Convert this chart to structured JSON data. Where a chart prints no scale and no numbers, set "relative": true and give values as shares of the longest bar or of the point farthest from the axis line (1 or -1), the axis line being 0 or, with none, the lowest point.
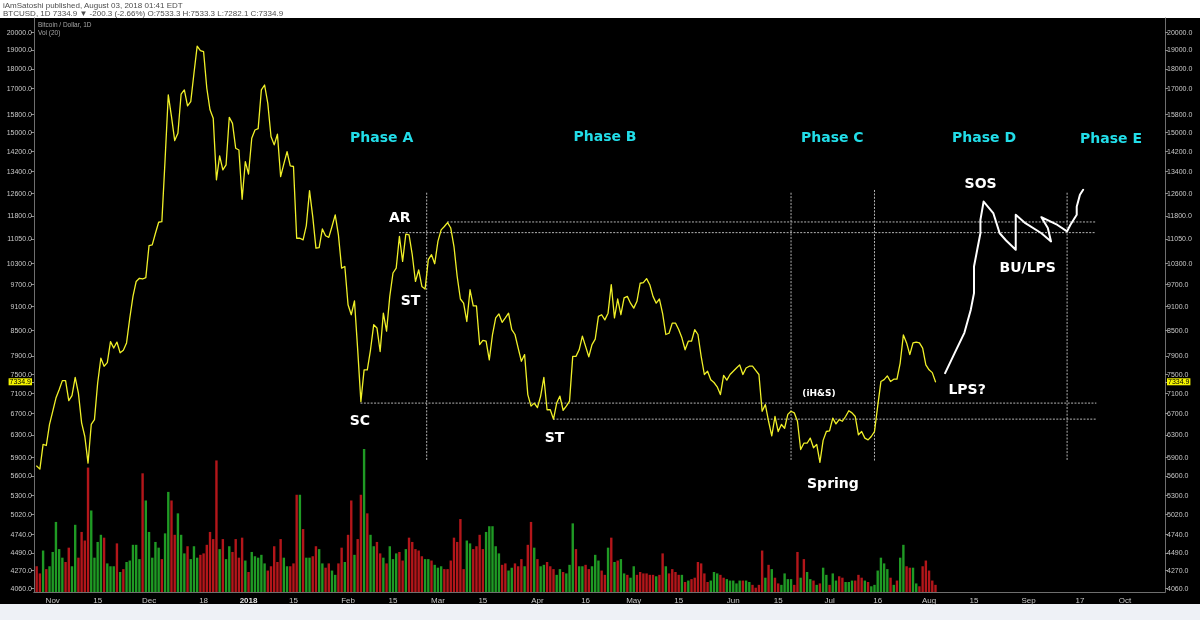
{
  "chart_data": [
    {
      "type": "line",
      "title": "Bitcoin / Dollar, 1D",
      "annotations": [
        "iAmSatoshi published, August 03, 2018 01:41 EDT",
        "BTCUSD, 1D 7334.9 ▼ -200.3 (-2.66%) O:7533.3 H:7533.3 L:7282.1 C:7334.9",
        "Phase A",
        "Phase B",
        "Phase C",
        "Phase D",
        "Phase E",
        {
          "text": "AR",
          "x": "2018-02-19",
          "y": 11200
        },
        {
          "text": "ST",
          "x": "2018-02-22",
          "y": 9780
        },
        {
          "text": "SC",
          "x": "2018-02-05",
          "y": 6930
        },
        {
          "text": "ST",
          "x": "2018-04-06",
          "y": 6590
        },
        {
          "text": "(iH&S)",
          "x": "2018-06-28",
          "y": 6900
        },
        {
          "text": "Spring",
          "x": "2018-06-28",
          "y": 5820
        },
        {
          "text": "SOS",
          "x": "2018-08-18",
          "y": 12300
        },
        {
          "text": "BU/LPS",
          "x": "2018-08-28",
          "y": 10710
        },
        {
          "text": "LPS?",
          "x": "2018-08-06",
          "y": 7520
        }
      ],
      "xlim": [
        "2017-10-26T04:00",
        "2018-10-13T12:00"
      ],
      "xticks": [
        {
          "value": "2017-11-01",
          "label": "Nov"
        },
        {
          "value": "2017-11-15",
          "label": "15"
        },
        {
          "value": "2017-12-01",
          "label": "Dec"
        },
        {
          "value": "2017-12-18",
          "label": "18"
        },
        {
          "value": "2018-01-01",
          "label": "2018"
        },
        {
          "value": "2018-01-15",
          "label": "15"
        },
        {
          "value": "2018-02-01",
          "label": "Feb"
        },
        {
          "value": "2018-02-15",
          "label": "15"
        },
        {
          "value": "2018-03-01",
          "label": "Mar"
        },
        {
          "value": "2018-03-15",
          "label": "15"
        },
        {
          "value": "2018-04-01",
          "label": "Apr"
        },
        {
          "value": "2018-04-16",
          "label": "16"
        },
        {
          "value": "2018-05-01",
          "label": "May"
        },
        {
          "value": "2018-05-15",
          "label": "15"
        },
        {
          "value": "2018-06-01",
          "label": "Jun"
        },
        {
          "value": "2018-06-15",
          "label": "15"
        },
        {
          "value": "2018-07-01",
          "label": "Jul"
        },
        {
          "value": "2018-07-16",
          "label": "16"
        },
        {
          "value": "2018-08-01",
          "label": "Aug"
        },
        {
          "value": "2018-08-15",
          "label": "15"
        },
        {
          "value": "2018-09-01",
          "label": "Sep"
        },
        {
          "value": "2018-09-17",
          "label": "17"
        },
        {
          "value": "2018-10-01",
          "label": "Oct"
        }
      ],
      "ylim": [
        4014,
        20820
      ],
      "yticks": [
        {
          "value": 20000,
          "label": "20000.0"
        },
        {
          "value": 19000,
          "label": "19000.0"
        },
        {
          "value": 18000,
          "label": "18000.0"
        },
        {
          "value": 17000,
          "label": "17000.0"
        },
        {
          "value": 15800,
          "label": "15800.0"
        },
        {
          "value": 15000,
          "label": "15000.0"
        },
        {
          "value": 14200,
          "label": "14200.0"
        },
        {
          "value": 13400,
          "label": "13400.0"
        },
        {
          "value": 12600,
          "label": "12600.0"
        },
        {
          "value": 11800,
          "label": "11800.0"
        },
        {
          "value": 11050,
          "label": "11050.0"
        },
        {
          "value": 10300,
          "label": "10300.0"
        },
        {
          "value": 9700,
          "label": "9700.0"
        },
        {
          "value": 9100,
          "label": "9100.0"
        },
        {
          "value": 8500,
          "label": "8500.0"
        },
        {
          "value": 7900,
          "label": "7900.0"
        },
        {
          "value": 7500,
          "label": "7500.0"
        },
        {
          "value": 7334.9,
          "label": "7334.9"
        },
        {
          "value": 7100,
          "label": "7100.0"
        },
        {
          "value": 6700,
          "label": "6700.0"
        },
        {
          "value": 6300,
          "label": "6300.0"
        },
        {
          "value": 5900,
          "label": "5900.0"
        },
        {
          "value": 5600,
          "label": "5600.0"
        },
        {
          "value": 5300,
          "label": "5300.0"
        },
        {
          "value": 5020,
          "label": "5020.0"
        },
        {
          "value": 4740,
          "label": "4740.0"
        },
        {
          "value": 4490,
          "label": "4490.0"
        },
        {
          "value": 4270,
          "label": "4270.0"
        },
        {
          "value": 4060,
          "label": "4060.0"
        }
      ],
      "log": "y",
      "series": [
        {
          "color": "#f0f028",
          "x": [
            "2017-10-27",
            "2017-10-28",
            "2017-10-29",
            "2017-10-30",
            "2017-10-31",
            "2017-11-01",
            "2017-11-02",
            "2017-11-03",
            "2017-11-04",
            "2017-11-05",
            "2017-11-06",
            "2017-11-07",
            "2017-11-08",
            "2017-11-09",
            "2017-11-10",
            "2017-11-11",
            "2017-11-12",
            "2017-11-13",
            "2017-11-14",
            "2017-11-15",
            "2017-11-16",
            "2017-11-17",
            "2017-11-18",
            "2017-11-19",
            "2017-11-20",
            "2017-11-21",
            "2017-11-22",
            "2017-11-23",
            "2017-11-24",
            "2017-11-25",
            "2017-11-26",
            "2017-11-27",
            "2017-11-28",
            "2017-11-29",
            "2017-11-30",
            "2017-12-01",
            "2017-12-02",
            "2017-12-03",
            "2017-12-04",
            "2017-12-05",
            "2017-12-06",
            "2017-12-07",
            "2017-12-08",
            "2017-12-09",
            "2017-12-10",
            "2017-12-11",
            "2017-12-12",
            "2017-12-13",
            "2017-12-14",
            "2017-12-15",
            "2017-12-16",
            "2017-12-17",
            "2017-12-18",
            "2017-12-19",
            "2017-12-20",
            "2017-12-21",
            "2017-12-22",
            "2017-12-23",
            "2017-12-24",
            "2017-12-25",
            "2017-12-26",
            "2017-12-27",
            "2017-12-28",
            "2017-12-29",
            "2017-12-30",
            "2017-12-31",
            "2018-01-01",
            "2018-01-02",
            "2018-01-03",
            "2018-01-04",
            "2018-01-05",
            "2018-01-06",
            "2018-01-07",
            "2018-01-08",
            "2018-01-09",
            "2018-01-10",
            "2018-01-11",
            "2018-01-12",
            "2018-01-13",
            "2018-01-14",
            "2018-01-15",
            "2018-01-16",
            "2018-01-17",
            "2018-01-18",
            "2018-01-19",
            "2018-01-20",
            "2018-01-21",
            "2018-01-22",
            "2018-01-23",
            "2018-01-24",
            "2018-01-25",
            "2018-01-26",
            "2018-01-27",
            "2018-01-28",
            "2018-01-29",
            "2018-01-30",
            "2018-01-31",
            "2018-02-01",
            "2018-02-02",
            "2018-02-03",
            "2018-02-04",
            "2018-02-05",
            "2018-02-06",
            "2018-02-07",
            "2018-02-08",
            "2018-02-09",
            "2018-02-10",
            "2018-02-11",
            "2018-02-12",
            "2018-02-13",
            "2018-02-14",
            "2018-02-15",
            "2018-02-16",
            "2018-02-17",
            "2018-02-18",
            "2018-02-19",
            "2018-02-20",
            "2018-02-21",
            "2018-02-22",
            "2018-02-23",
            "2018-02-24",
            "2018-02-25",
            "2018-02-26",
            "2018-02-27",
            "2018-02-28",
            "2018-03-01",
            "2018-03-02",
            "2018-03-03",
            "2018-03-04",
            "2018-03-05",
            "2018-03-06",
            "2018-03-07",
            "2018-03-08",
            "2018-03-09",
            "2018-03-10",
            "2018-03-11",
            "2018-03-12",
            "2018-03-13",
            "2018-03-14",
            "2018-03-15",
            "2018-03-16",
            "2018-03-17",
            "2018-03-18",
            "2018-03-19",
            "2018-03-20",
            "2018-03-21",
            "2018-03-22",
            "2018-03-23",
            "2018-03-24",
            "2018-03-25",
            "2018-03-26",
            "2018-03-27",
            "2018-03-28",
            "2018-03-29",
            "2018-03-30",
            "2018-03-31",
            "2018-04-01",
            "2018-04-02",
            "2018-04-03",
            "2018-04-04",
            "2018-04-05",
            "2018-04-06",
            "2018-04-07",
            "2018-04-08",
            "2018-04-09",
            "2018-04-10",
            "2018-04-11",
            "2018-04-12",
            "2018-04-13",
            "2018-04-14",
            "2018-04-15",
            "2018-04-16",
            "2018-04-17",
            "2018-04-18",
            "2018-04-19",
            "2018-04-20",
            "2018-04-21",
            "2018-04-22",
            "2018-04-23",
            "2018-04-24",
            "2018-04-25",
            "2018-04-26",
            "2018-04-27",
            "2018-04-28",
            "2018-04-29",
            "2018-04-30",
            "2018-05-01",
            "2018-05-02",
            "2018-05-03",
            "2018-05-04",
            "2018-05-05",
            "2018-05-06",
            "2018-05-07",
            "2018-05-08",
            "2018-05-09",
            "2018-05-10",
            "2018-05-11",
            "2018-05-12",
            "2018-05-13",
            "2018-05-14",
            "2018-05-15",
            "2018-05-16",
            "2018-05-17",
            "2018-05-18",
            "2018-05-19",
            "2018-05-20",
            "2018-05-21",
            "2018-05-22",
            "2018-05-23",
            "2018-05-24",
            "2018-05-25",
            "2018-05-26",
            "2018-05-27",
            "2018-05-28",
            "2018-05-29",
            "2018-05-30",
            "2018-05-31",
            "2018-06-01",
            "2018-06-02",
            "2018-06-03",
            "2018-06-04",
            "2018-06-05",
            "2018-06-06",
            "2018-06-07",
            "2018-06-08",
            "2018-06-09",
            "2018-06-10",
            "2018-06-11",
            "2018-06-12",
            "2018-06-13",
            "2018-06-14",
            "2018-06-15",
            "2018-06-16",
            "2018-06-17",
            "2018-06-18",
            "2018-06-19",
            "2018-06-20",
            "2018-06-21",
            "2018-06-22",
            "2018-06-23",
            "2018-06-24",
            "2018-06-25",
            "2018-06-26",
            "2018-06-27",
            "2018-06-28",
            "2018-06-29",
            "2018-06-30",
            "2018-07-01",
            "2018-07-02",
            "2018-07-03",
            "2018-07-04",
            "2018-07-05",
            "2018-07-06",
            "2018-07-07",
            "2018-07-08",
            "2018-07-09",
            "2018-07-10",
            "2018-07-11",
            "2018-07-12",
            "2018-07-13",
            "2018-07-14",
            "2018-07-15",
            "2018-07-16",
            "2018-07-17",
            "2018-07-18",
            "2018-07-19",
            "2018-07-20",
            "2018-07-21",
            "2018-07-22",
            "2018-07-23",
            "2018-07-24",
            "2018-07-25",
            "2018-07-26",
            "2018-07-27",
            "2018-07-28",
            "2018-07-29",
            "2018-07-30",
            "2018-07-31",
            "2018-08-01",
            "2018-08-02",
            "2018-08-03"
          ],
          "values": [
            5760,
            5710,
            6130,
            6110,
            6490,
            6740,
            7000,
            7170,
            7360,
            7360,
            6950,
            7050,
            7430,
            7100,
            6520,
            6270,
            5810,
            6490,
            6580,
            7310,
            7850,
            7670,
            7750,
            8230,
            8080,
            8220,
            7970,
            8030,
            8200,
            8800,
            9370,
            9780,
            9870,
            9850,
            9890,
            10840,
            10860,
            11230,
            11590,
            11610,
            13860,
            16700,
            15690,
            14650,
            14960,
            16740,
            16940,
            16180,
            16380,
            17770,
            19210,
            18960,
            18900,
            17020,
            16000,
            15620,
            13090,
            14020,
            13470,
            13660,
            15660,
            15390,
            14330,
            14260,
            12380,
            13790,
            13310,
            14750,
            15100,
            15160,
            16940,
            17180,
            16300,
            14820,
            14470,
            14920,
            13210,
            13700,
            14190,
            13620,
            13600,
            11070,
            11070,
            11020,
            11480,
            12690,
            11780,
            10760,
            10780,
            11370,
            11150,
            11100,
            11450,
            11840,
            11180,
            10160,
            10210,
            9150,
            8890,
            9250,
            8050,
            6930,
            7590,
            7590,
            8040,
            8640,
            8560,
            8000,
            8930,
            8480,
            9370,
            10020,
            10160,
            11130,
            10360,
            11200,
            11180,
            10560,
            9780,
            10110,
            9640,
            9570,
            10410,
            10560,
            10290,
            10970,
            11340,
            11450,
            11580,
            11400,
            10810,
            9920,
            9300,
            9190,
            8720,
            9550,
            9120,
            9120,
            8160,
            8260,
            8240,
            7810,
            8400,
            8810,
            8910,
            8700,
            8810,
            8930,
            8520,
            8400,
            8080,
            7780,
            7930,
            7070,
            6840,
            6900,
            6810,
            7040,
            7430,
            6770,
            6770,
            6590,
            6900,
            7040,
            6760,
            6840,
            6940,
            7890,
            7890,
            8040,
            8360,
            8120,
            7880,
            8160,
            8290,
            8850,
            8890,
            8760,
            8930,
            9690,
            8810,
            9300,
            8890,
            9330,
            9370,
            9190,
            9060,
            9240,
            9730,
            9750,
            9860,
            9690,
            9370,
            9190,
            9300,
            8920,
            8400,
            8430,
            8680,
            8680,
            8520,
            8320,
            8040,
            8240,
            8240,
            8520,
            8400,
            7890,
            7490,
            7560,
            7380,
            7320,
            7230,
            7070,
            7470,
            7370,
            7490,
            7560,
            7630,
            7700,
            7490,
            7630,
            7670,
            7670,
            7580,
            7490,
            6740,
            6870,
            6550,
            6280,
            6640,
            6360,
            6490,
            6420,
            6680,
            6740,
            6710,
            6550,
            6040,
            6150,
            6150,
            6240,
            6070,
            6130,
            5820,
            6200,
            6360,
            6370,
            6610,
            6500,
            6580,
            6550,
            6640,
            6750,
            6710,
            6640,
            6300,
            6360,
            6240,
            6210,
            6270,
            6360,
            6840,
            7340,
            7380,
            7460,
            7340,
            7390,
            7390,
            7740,
            8390,
            8200,
            7930,
            8200,
            8220,
            8200,
            8080,
            7700,
            7590,
            7530,
            7334.9
          ]
        },
        {
          "color": "#ffffff",
          "x": [
            "2018-08-06",
            "2018-08-09",
            "2018-08-12",
            "2018-08-14",
            "2018-08-15",
            "2018-08-15",
            "2018-08-16",
            "2018-08-17",
            "2018-08-17",
            "2018-08-18",
            "2018-08-21",
            "2018-08-23",
            "2018-08-25",
            "2018-08-28",
            "2018-08-28",
            "2018-08-31",
            "2018-09-05",
            "2018-09-08",
            "2018-09-07",
            "2018-09-05",
            "2018-09-10",
            "2018-09-13",
            "2018-09-14",
            "2018-09-16",
            "2018-09-16",
            "2018-09-17",
            "2018-09-18"
          ],
          "values": [
            7520,
            7970,
            8440,
            9020,
            9460,
            10210,
            10710,
            11230,
            11670,
            12300,
            11900,
            11230,
            11000,
            10710,
            11840,
            11560,
            11230,
            10970,
            11400,
            11760,
            11500,
            11290,
            11500,
            11840,
            12120,
            12540,
            12720
          ]
        },
        {
          "color": "#b4b4b4",
          "line_style": "dotted",
          "x": [
            "2018-02-17",
            "2018-09-22"
          ],
          "values": [
            11250,
            11250
          ]
        },
        {
          "color": "#b4b4b4",
          "line_style": "dotted",
          "x": [
            "2018-03-04",
            "2018-09-22"
          ],
          "values": [
            11600,
            11600
          ]
        },
        {
          "color": "#b4b4b4",
          "line_style": "dotted",
          "x": [
            "2018-02-05",
            "2018-09-22"
          ],
          "values": [
            6900,
            6900
          ]
        },
        {
          "color": "#b4b4b4",
          "line_style": "dotted",
          "x": [
            "2018-04-06",
            "2018-09-22"
          ],
          "values": [
            6590,
            6590
          ]
        },
        {
          "color": "#b4b4b4",
          "line_style": "dotted",
          "x": [
            "2018-02-25T12:00",
            "2018-02-25T12:00"
          ],
          "values": [
            12600,
            5850
          ]
        },
        {
          "color": "#b4b4b4",
          "line_style": "dotted",
          "x": [
            "2018-06-19",
            "2018-06-19"
          ],
          "values": [
            12600,
            5850
          ]
        },
        {
          "color": "#b4b4b4",
          "line_style": "dotted",
          "x": [
            "2018-07-15",
            "2018-07-15"
          ],
          "values": [
            12700,
            5850
          ]
        },
        {
          "color": "#b4b4b4",
          "line_style": "dotted",
          "x": [
            "2018-09-13",
            "2018-09-13"
          ],
          "values": [
            12600,
            5850
          ]
        }
      ]
    },
    {
      "type": "bar",
      "title": "Vol (20)",
      "relative": true,
      "xlim": [
        "2017-10-26T04:00",
        "2018-10-13T12:00"
      ],
      "x": [
        "2017-10-27",
        "2017-10-28",
        "2017-10-29",
        "2017-10-30",
        "2017-10-31",
        "2017-11-01",
        "2017-11-02",
        "2017-11-03",
        "2017-11-04",
        "2017-11-05",
        "2017-11-06",
        "2017-11-07",
        "2017-11-08",
        "2017-11-09",
        "2017-11-10",
        "2017-11-11",
        "2017-11-12",
        "2017-11-13",
        "2017-11-14",
        "2017-11-15",
        "2017-11-16",
        "2017-11-17",
        "2017-11-18",
        "2017-11-19",
        "2017-11-20",
        "2017-11-21",
        "2017-11-22",
        "2017-11-23",
        "2017-11-24",
        "2017-11-25",
        "2017-11-26",
        "2017-11-27",
        "2017-11-28",
        "2017-11-29",
        "2017-11-30",
        "2017-12-01",
        "2017-12-02",
        "2017-12-03",
        "2017-12-04",
        "2017-12-05",
        "2017-12-06",
        "2017-12-07",
        "2017-12-08",
        "2017-12-09",
        "2017-12-10",
        "2017-12-11",
        "2017-12-12",
        "2017-12-13",
        "2017-12-14",
        "2017-12-15",
        "2017-12-16",
        "2017-12-17",
        "2017-12-18",
        "2017-12-19",
        "2017-12-20",
        "2017-12-21",
        "2017-12-22",
        "2017-12-23",
        "2017-12-24",
        "2017-12-25",
        "2017-12-26",
        "2017-12-27",
        "2017-12-28",
        "2017-12-29",
        "2017-12-30",
        "2017-12-31",
        "2018-01-01",
        "2018-01-02",
        "2018-01-03",
        "2018-01-04",
        "2018-01-05",
        "2018-01-06",
        "2018-01-07",
        "2018-01-08",
        "2018-01-09",
        "2018-01-10",
        "2018-01-11",
        "2018-01-12",
        "2018-01-13",
        "2018-01-14",
        "2018-01-15",
        "2018-01-16",
        "2018-01-17",
        "2018-01-18",
        "2018-01-19",
        "2018-01-20",
        "2018-01-21",
        "2018-01-22",
        "2018-01-23",
        "2018-01-24",
        "2018-01-25",
        "2018-01-26",
        "2018-01-27",
        "2018-01-28",
        "2018-01-29",
        "2018-01-30",
        "2018-01-31",
        "2018-02-01",
        "2018-02-02",
        "2018-02-03",
        "2018-02-04",
        "2018-02-05",
        "2018-02-06",
        "2018-02-07",
        "2018-02-08",
        "2018-02-09",
        "2018-02-10",
        "2018-02-11",
        "2018-02-12",
        "2018-02-13",
        "2018-02-14",
        "2018-02-15",
        "2018-02-16",
        "2018-02-17",
        "2018-02-18",
        "2018-02-19",
        "2018-02-20",
        "2018-02-21",
        "2018-02-22",
        "2018-02-23",
        "2018-02-24",
        "2018-02-25",
        "2018-02-26",
        "2018-02-27",
        "2018-02-28",
        "2018-03-01",
        "2018-03-02",
        "2018-03-03",
        "2018-03-04",
        "2018-03-05",
        "2018-03-06",
        "2018-03-07",
        "2018-03-08",
        "2018-03-09",
        "2018-03-10",
        "2018-03-11",
        "2018-03-12",
        "2018-03-13",
        "2018-03-14",
        "2018-03-15",
        "2018-03-16",
        "2018-03-17",
        "2018-03-18",
        "2018-03-19",
        "2018-03-20",
        "2018-03-21",
        "2018-03-22",
        "2018-03-23",
        "2018-03-24",
        "2018-03-25",
        "2018-03-26",
        "2018-03-27",
        "2018-03-28",
        "2018-03-29",
        "2018-03-30",
        "2018-03-31",
        "2018-04-01",
        "2018-04-02",
        "2018-04-03",
        "2018-04-04",
        "2018-04-05",
        "2018-04-06",
        "2018-04-07",
        "2018-04-08",
        "2018-04-09",
        "2018-04-10",
        "2018-04-11",
        "2018-04-12",
        "2018-04-13",
        "2018-04-14",
        "2018-04-15",
        "2018-04-16",
        "2018-04-17",
        "2018-04-18",
        "2018-04-19",
        "2018-04-20",
        "2018-04-21",
        "2018-04-22",
        "2018-04-23",
        "2018-04-24",
        "2018-04-25",
        "2018-04-26",
        "2018-04-27",
        "2018-04-28",
        "2018-04-29",
        "2018-04-30",
        "2018-05-01",
        "2018-05-02",
        "2018-05-03",
        "2018-05-04",
        "2018-05-05",
        "2018-05-06",
        "2018-05-07",
        "2018-05-08",
        "2018-05-09",
        "2018-05-10",
        "2018-05-11",
        "2018-05-12",
        "2018-05-13",
        "2018-05-14",
        "2018-05-15",
        "2018-05-16",
        "2018-05-17",
        "2018-05-18",
        "2018-05-19",
        "2018-05-20",
        "2018-05-21",
        "2018-05-22",
        "2018-05-23",
        "2018-05-24",
        "2018-05-25",
        "2018-05-26",
        "2018-05-27",
        "2018-05-28",
        "2018-05-29",
        "2018-05-30",
        "2018-05-31",
        "2018-06-01",
        "2018-06-02",
        "2018-06-03",
        "2018-06-04",
        "2018-06-05",
        "2018-06-06",
        "2018-06-07",
        "2018-06-08",
        "2018-06-09",
        "2018-06-10",
        "2018-06-11",
        "2018-06-12",
        "2018-06-13",
        "2018-06-14",
        "2018-06-15",
        "2018-06-16",
        "2018-06-17",
        "2018-06-18",
        "2018-06-19",
        "2018-06-20",
        "2018-06-21",
        "2018-06-22",
        "2018-06-23",
        "2018-06-24",
        "2018-06-25",
        "2018-06-26",
        "2018-06-27",
        "2018-06-28",
        "2018-06-29",
        "2018-06-30",
        "2018-07-01",
        "2018-07-02",
        "2018-07-03",
        "2018-07-04",
        "2018-07-05",
        "2018-07-06",
        "2018-07-07",
        "2018-07-08",
        "2018-07-09",
        "2018-07-10",
        "2018-07-11",
        "2018-07-12",
        "2018-07-13",
        "2018-07-14",
        "2018-07-15",
        "2018-07-16",
        "2018-07-17",
        "2018-07-18",
        "2018-07-19",
        "2018-07-20",
        "2018-07-21",
        "2018-07-22",
        "2018-07-23",
        "2018-07-24",
        "2018-07-25",
        "2018-07-26",
        "2018-07-27",
        "2018-07-28",
        "2018-07-29",
        "2018-07-30",
        "2018-07-31",
        "2018-08-01",
        "2018-08-02",
        "2018-08-03"
      ],
      "values": [
        0.18,
        0.13,
        0.29,
        0.16,
        0.18,
        0.28,
        0.49,
        0.3,
        0.24,
        0.21,
        0.31,
        0.18,
        0.47,
        0.24,
        0.42,
        0.36,
        0.87,
        0.57,
        0.24,
        0.35,
        0.4,
        0.38,
        0.2,
        0.18,
        0.18,
        0.34,
        0.14,
        0.16,
        0.21,
        0.22,
        0.33,
        0.33,
        0.23,
        0.83,
        0.64,
        0.42,
        0.24,
        0.35,
        0.31,
        0.23,
        0.41,
        0.7,
        0.64,
        0.4,
        0.55,
        0.4,
        0.27,
        0.32,
        0.23,
        0.32,
        0.24,
        0.26,
        0.27,
        0.33,
        0.42,
        0.37,
        0.92,
        0.3,
        0.37,
        0.23,
        0.32,
        0.28,
        0.37,
        0.24,
        0.38,
        0.22,
        0.14,
        0.28,
        0.25,
        0.24,
        0.26,
        0.2,
        0.15,
        0.18,
        0.32,
        0.21,
        0.37,
        0.24,
        0.18,
        0.18,
        0.2,
        0.68,
        0.68,
        0.44,
        0.24,
        0.24,
        0.25,
        0.32,
        0.3,
        0.2,
        0.17,
        0.2,
        0.15,
        0.12,
        0.2,
        0.31,
        0.21,
        0.4,
        0.64,
        0.26,
        0.37,
        0.68,
        1,
        0.55,
        0.4,
        0.32,
        0.35,
        0.27,
        0.24,
        0.2,
        0.32,
        0.23,
        0.27,
        0.28,
        0.22,
        0.3,
        0.38,
        0.35,
        0.3,
        0.29,
        0.25,
        0.23,
        0.23,
        0.22,
        0.19,
        0.17,
        0.18,
        0.16,
        0.16,
        0.22,
        0.38,
        0.35,
        0.51,
        0.16,
        0.36,
        0.34,
        0.3,
        0.32,
        0.4,
        0.3,
        0.42,
        0.46,
        0.46,
        0.32,
        0.27,
        0.19,
        0.2,
        0.15,
        0.17,
        0.2,
        0.18,
        0.23,
        0.18,
        0.33,
        0.49,
        0.31,
        0.23,
        0.18,
        0.19,
        0.21,
        0.18,
        0.16,
        0.12,
        0.16,
        0.14,
        0.13,
        0.19,
        0.48,
        0.3,
        0.18,
        0.18,
        0.19,
        0.16,
        0.18,
        0.26,
        0.22,
        0.15,
        0.12,
        0.31,
        0.38,
        0.21,
        0.22,
        0.23,
        0.13,
        0.12,
        0.1,
        0.18,
        0.12,
        0.14,
        0.13,
        0.13,
        0.12,
        0.12,
        0.11,
        0.12,
        0.27,
        0.18,
        0.13,
        0.16,
        0.14,
        0.12,
        0.12,
        0.07,
        0.08,
        0.09,
        0.1,
        0.21,
        0.2,
        0.13,
        0.07,
        0.08,
        0.14,
        0.13,
        0.12,
        0.1,
        0.09,
        0.08,
        0.08,
        0.06,
        0.08,
        0.08,
        0.08,
        0.07,
        0.05,
        0.03,
        0.05,
        0.29,
        0.1,
        0.19,
        0.16,
        0.1,
        0.06,
        0.05,
        0.13,
        0.09,
        0.09,
        0.05,
        0.28,
        0.1,
        0.23,
        0.14,
        0.09,
        0.08,
        0.05,
        0.06,
        0.17,
        0.12,
        0.05,
        0.13,
        0.08,
        0.11,
        0.1,
        0.07,
        0.07,
        0.08,
        0.08,
        0.12,
        0.1,
        0.08,
        0.07,
        0.04,
        0.05,
        0.15,
        0.24,
        0.2,
        0.16,
        0.1,
        0.05,
        0.08,
        0.24,
        0.33,
        0.18,
        0.17,
        0.17,
        0.06,
        0.04,
        0.18,
        0.22,
        0.15,
        0.08,
        0.05
      ],
      "colors": [
        "#b3161a",
        "#b3161a",
        "#1f9a24",
        "#b3161a",
        "#1f9a24",
        "#1f9a24",
        "#1f9a24",
        "#1f9a24",
        "#1f9a24",
        "#b3161a",
        "#b3161a",
        "#1f9a24",
        "#1f9a24",
        "#b3161a",
        "#b3161a",
        "#b3161a",
        "#b3161a",
        "#1f9a24",
        "#1f9a24",
        "#1f9a24",
        "#1f9a24",
        "#b3161a",
        "#1f9a24",
        "#1f9a24",
        "#1f9a24",
        "#b3161a",
        "#1f9a24",
        "#b3161a",
        "#1f9a24",
        "#1f9a24",
        "#1f9a24",
        "#1f9a24",
        "#1f9a24",
        "#b3161a",
        "#1f9a24",
        "#1f9a24",
        "#1f9a24",
        "#1f9a24",
        "#1f9a24",
        "#b3161a",
        "#1f9a24",
        "#1f9a24",
        "#b3161a",
        "#b3161a",
        "#1f9a24",
        "#1f9a24",
        "#1f9a24",
        "#b3161a",
        "#1f9a24",
        "#1f9a24",
        "#1f9a24",
        "#b3161a",
        "#b3161a",
        "#b3161a",
        "#b3161a",
        "#b3161a",
        "#b3161a",
        "#1f9a24",
        "#b3161a",
        "#1f9a24",
        "#1f9a24",
        "#b3161a",
        "#b3161a",
        "#b3161a",
        "#b3161a",
        "#1f9a24",
        "#b3161a",
        "#1f9a24",
        "#1f9a24",
        "#1f9a24",
        "#1f9a24",
        "#1f9a24",
        "#b3161a",
        "#b3161a",
        "#b3161a",
        "#b3161a",
        "#b3161a",
        "#1f9a24",
        "#1f9a24",
        "#b3161a",
        "#b3161a",
        "#b3161a",
        "#1f9a24",
        "#b3161a",
        "#1f9a24",
        "#1f9a24",
        "#b3161a",
        "#b3161a",
        "#1f9a24",
        "#1f9a24",
        "#b3161a",
        "#b3161a",
        "#1f9a24",
        "#1f9a24",
        "#b3161a",
        "#b3161a",
        "#1f9a24",
        "#b3161a",
        "#b3161a",
        "#1f9a24",
        "#b3161a",
        "#b3161a",
        "#1f9a24",
        "#b3161a",
        "#1f9a24",
        "#1f9a24",
        "#b3161a",
        "#b3161a",
        "#1f9a24",
        "#b3161a",
        "#1f9a24",
        "#1f9a24",
        "#1f9a24",
        "#b3161a",
        "#b3161a",
        "#1f9a24",
        "#b3161a",
        "#b3161a",
        "#b3161a",
        "#b3161a",
        "#b3161a",
        "#1f9a24",
        "#1f9a24",
        "#b3161a",
        "#1f9a24",
        "#1f9a24",
        "#1f9a24",
        "#b3161a",
        "#b3161a",
        "#b3161a",
        "#b3161a",
        "#b3161a",
        "#b3161a",
        "#b3161a",
        "#1f9a24",
        "#1f9a24",
        "#b3161a",
        "#b3161a",
        "#b3161a",
        "#b3161a",
        "#1f9a24",
        "#1f9a24",
        "#1f9a24",
        "#1f9a24",
        "#1f9a24",
        "#b3161a",
        "#b3161a",
        "#1f9a24",
        "#1f9a24",
        "#b3161a",
        "#b3161a",
        "#b3161a",
        "#1f9a24",
        "#b3161a",
        "#b3161a",
        "#1f9a24",
        "#b3161a",
        "#1f9a24",
        "#1f9a24",
        "#b3161a",
        "#b3161a",
        "#b3161a",
        "#1f9a24",
        "#1f9a24",
        "#b3161a",
        "#1f9a24",
        "#1f9a24",
        "#1f9a24",
        "#b3161a",
        "#1f9a24",
        "#1f9a24",
        "#b3161a",
        "#b3161a",
        "#1f9a24",
        "#1f9a24",
        "#1f9a24",
        "#b3161a",
        "#b3161a",
        "#1f9a24",
        "#b3161a",
        "#1f9a24",
        "#b3161a",
        "#1f9a24",
        "#1f9a24",
        "#b3161a",
        "#1f9a24",
        "#1f9a24",
        "#b3161a",
        "#b3161a",
        "#b3161a",
        "#b3161a",
        "#b3161a",
        "#b3161a",
        "#1f9a24",
        "#b3161a",
        "#b3161a",
        "#1f9a24",
        "#b3161a",
        "#b3161a",
        "#b3161a",
        "#b3161a",
        "#1f9a24",
        "#b3161a",
        "#1f9a24",
        "#b3161a",
        "#b3161a",
        "#b3161a",
        "#b3161a",
        "#b3161a",
        "#b3161a",
        "#1f9a24",
        "#1f9a24",
        "#1f9a24",
        "#b3161a",
        "#b3161a",
        "#1f9a24",
        "#1f9a24",
        "#1f9a24",
        "#1f9a24",
        "#1f9a24",
        "#b3161a",
        "#1f9a24",
        "#1f9a24",
        "#b3161a",
        "#b3161a",
        "#b3161a",
        "#b3161a",
        "#1f9a24",
        "#b3161a",
        "#1f9a24",
        "#b3161a",
        "#b3161a",
        "#1f9a24",
        "#1f9a24",
        "#1f9a24",
        "#1f9a24",
        "#b3161a",
        "#b3161a",
        "#1f9a24",
        "#b3161a",
        "#1f9a24",
        "#1f9a24",
        "#b3161a",
        "#1f9a24",
        "#b3161a",
        "#1f9a24",
        "#1f9a24",
        "#b3161a",
        "#1f9a24",
        "#1f9a24",
        "#b3161a",
        "#b3161a",
        "#1f9a24",
        "#1f9a24",
        "#1f9a24",
        "#b3161a",
        "#b3161a",
        "#b3161a",
        "#1f9a24",
        "#b3161a",
        "#1f9a24",
        "#1f9a24",
        "#1f9a24",
        "#1f9a24",
        "#1f9a24",
        "#1f9a24",
        "#b3161a",
        "#1f9a24",
        "#b3161a",
        "#1f9a24",
        "#1f9a24",
        "#b3161a",
        "#b3161a",
        "#1f9a24",
        "#1f9a24",
        "#b3161a",
        "#b3161a",
        "#b3161a",
        "#b3161a",
        "#b3161a",
        "#b3161a"
      ]
    }
  ]
}
